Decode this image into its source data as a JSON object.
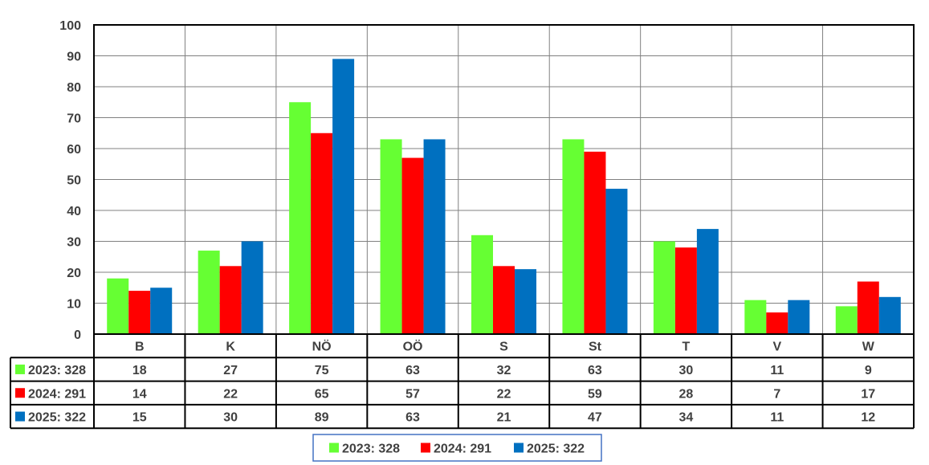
{
  "chart_data": {
    "type": "bar",
    "categories": [
      "B",
      "K",
      "NÖ",
      "OÖ",
      "S",
      "St",
      "T",
      "V",
      "W"
    ],
    "series": [
      {
        "name": "2023: 328",
        "color": "#66FF33",
        "values": [
          18,
          27,
          75,
          63,
          32,
          63,
          30,
          11,
          9
        ]
      },
      {
        "name": "2024: 291",
        "color": "#FF0000",
        "values": [
          14,
          22,
          65,
          57,
          22,
          59,
          28,
          7,
          17
        ]
      },
      {
        "name": "2025: 322",
        "color": "#0070C0",
        "values": [
          15,
          30,
          89,
          63,
          21,
          47,
          34,
          11,
          12
        ]
      }
    ],
    "yticks": [
      "0",
      "10",
      "20",
      "30",
      "40",
      "50",
      "60",
      "70",
      "80",
      "90",
      "100"
    ],
    "ylim": [
      0,
      100
    ],
    "grid": true,
    "legend": "bottom",
    "data_table": true
  }
}
